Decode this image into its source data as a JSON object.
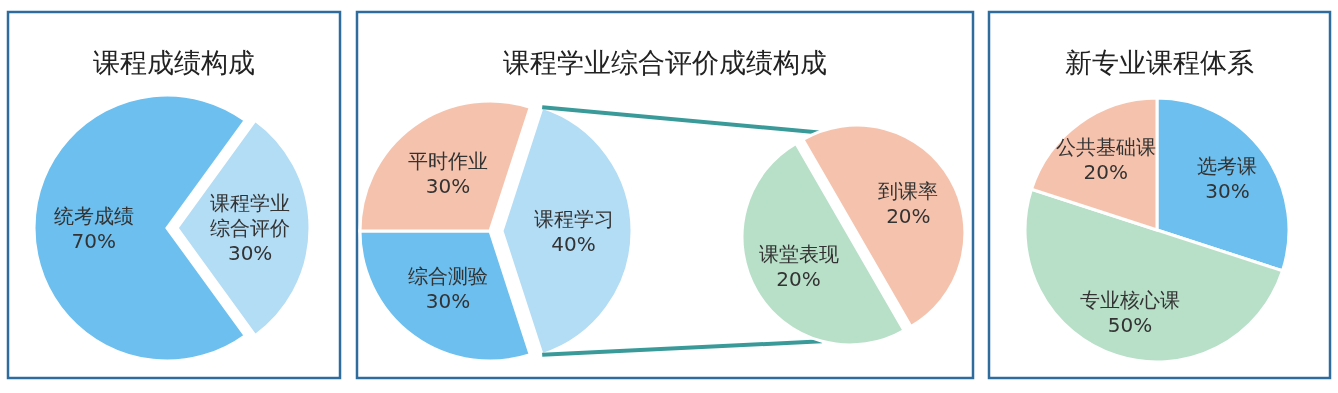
{
  "chart_data": [
    {
      "type": "pie",
      "title": "课程成绩构成",
      "categories": [
        "课程学业综合评价",
        "统考成绩"
      ],
      "values": [
        30,
        70
      ],
      "colors": [
        "#b3dcf5",
        "#6cbfee"
      ],
      "value_labels": [
        "30%",
        "70%"
      ]
    },
    {
      "type": "pie",
      "title": "课程学业综合评价成绩构成",
      "categories": [
        "课程学习",
        "综合测验",
        "平时作业"
      ],
      "values": [
        40,
        30,
        30
      ],
      "colors": [
        "#b3dcf5",
        "#6cbfee",
        "#f5c3ad"
      ],
      "value_labels": [
        "40%",
        "30%",
        "30%"
      ]
    },
    {
      "type": "pie",
      "categories": [
        "到课率",
        "课堂表现"
      ],
      "values": [
        20,
        20
      ],
      "colors": [
        "#f5c3ad",
        "#b8e0c8"
      ],
      "value_labels": [
        "20%",
        "20%"
      ]
    },
    {
      "type": "pie",
      "title": "新专业课程体系",
      "categories": [
        "选考课",
        "专业核心课",
        "公共基础课"
      ],
      "values": [
        30,
        50,
        20
      ],
      "colors": [
        "#6cbfee",
        "#b8e0c8",
        "#f5c3ad"
      ],
      "value_labels": [
        "30%",
        "50%",
        "20%"
      ]
    }
  ]
}
